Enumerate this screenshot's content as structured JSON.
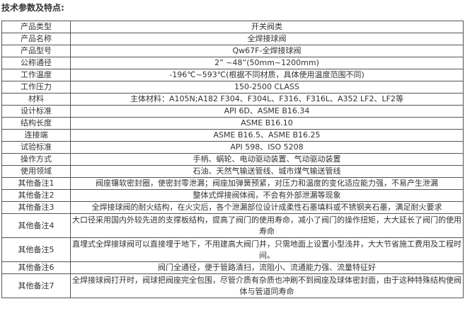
{
  "title": "技术参数及特点:",
  "rows": [
    {
      "label": "产品类型",
      "value": "开关阀类"
    },
    {
      "label": "产品名称",
      "value": "全焊接球阀"
    },
    {
      "label": "产品型号",
      "value": "Qw67F-全焊接球阀"
    },
    {
      "label": "公称通径",
      "value": "2”  ~48”(50mm~1200mm)"
    },
    {
      "label": "工作温度",
      "value": "-196℃~593℃(根据不同材质，具体使用温度范围不同)"
    },
    {
      "label": "工作压力",
      "value": "150-2500 CLASS"
    },
    {
      "label": "材料",
      "value": "主体材料：A105N;A182 F304、F304L、F316、F316L、A352 LF2、LF2等"
    },
    {
      "label": "设计标准",
      "value": "API 6D、ASME B16.34"
    },
    {
      "label": "结构长度",
      "value": "ASME B16.10"
    },
    {
      "label": "连接端",
      "value": "ASME B16.5、ASME B16.25"
    },
    {
      "label": "试验标准",
      "value": "API 598、ISO 5208"
    },
    {
      "label": "操作方式",
      "value": "手柄、蜗轮、电动驱动装置、气动驱动装置"
    },
    {
      "label": "使用领域",
      "value": "石油、天然气输送管线、城市煤气输送管线"
    },
    {
      "label": "其他备注1",
      "value": "阀座镶软密封圈，使密封零泄漏；阀座加弹簧预紧，对压力和温度的变化适应能力强，不易产生泄漏"
    },
    {
      "label": "其他备注2",
      "value": "整体式焊接阀体阀，不会有外部泄漏等现象"
    },
    {
      "label": "其他备注3",
      "value": "全焊接球阀的耐火结构，在火灾后，各个泄漏部位设计成柔性石墨填料或不锈钢夹石墨，满足耐火要求"
    },
    {
      "label": "其他备注4",
      "value": "大口径采用国内外较先进的支撑板结构，提高了阀门的使用寿命，减小了阀门的操作扭矩，大大延长了阀门的使用寿命"
    },
    {
      "label": "其他备注5",
      "value": "直埋式全焊接球阀可以直接埋于地下，不用建高大阀门井，只需地面上设置小型浅井，大大节省施工费用及工程时间。"
    },
    {
      "label": "其他备注6",
      "value": "阀门全通径，便于管路清扫，流阻小、流通能力强、流量特征好"
    },
    {
      "label": "其他备注7",
      "value": "全焊接球阀打开时，阀球把阀座完全包围，尽管介质有杂质也冲刷不到阀座及球体密封面，由于这种特殊结构使阀体与管道同寿命"
    }
  ]
}
